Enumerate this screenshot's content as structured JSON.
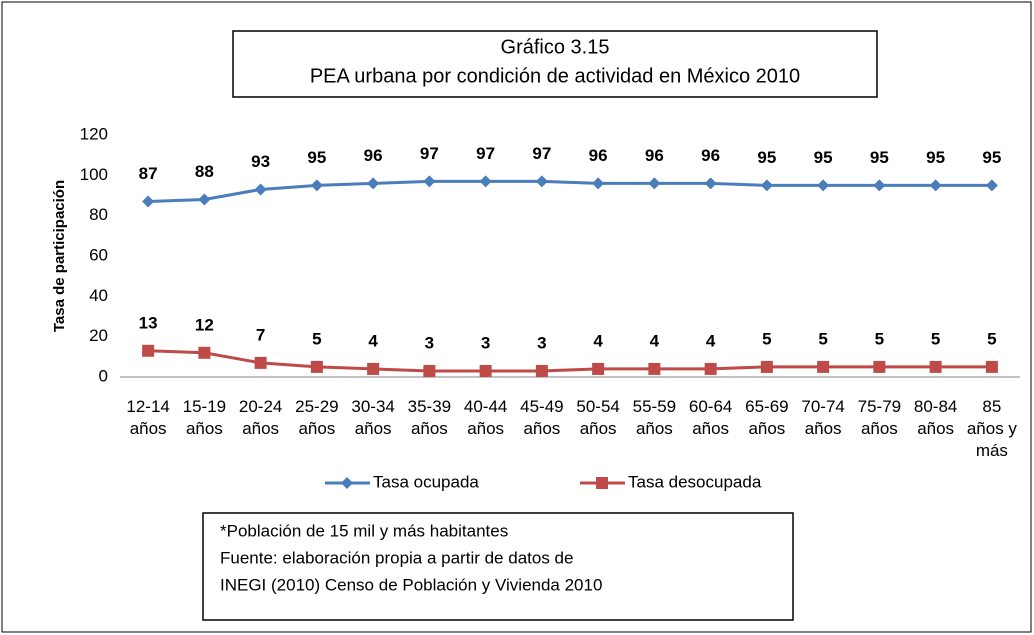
{
  "chart_data": {
    "type": "line",
    "title": "Gráfico 3.15",
    "subtitle": "PEA urbana por condición de actividad en México 2010",
    "y_label": "Tasa de participación",
    "categories": [
      "12-14 años",
      "15-19 años",
      "20-24 años",
      "25-29 años",
      "30-34 años",
      "35-39 años",
      "40-44 años",
      "45-49 años",
      "50-54 años",
      "55-59 años",
      "60-64 años",
      "65-69 años",
      "70-74 años",
      "75-79 años",
      "80-84 años",
      "85 años y más"
    ],
    "series": [
      {
        "name": "Tasa ocupada",
        "color": "#4a7ebb",
        "marker": "diamond",
        "values": [
          87,
          88,
          93,
          95,
          96,
          97,
          97,
          97,
          96,
          96,
          96,
          95,
          95,
          95,
          95,
          95
        ]
      },
      {
        "name": "Tasa desocupada",
        "color": "#be4b48",
        "marker": "square",
        "values": [
          13,
          12,
          7,
          5,
          4,
          3,
          3,
          3,
          4,
          4,
          4,
          5,
          5,
          5,
          5,
          5
        ]
      }
    ],
    "ylim": [
      0,
      120
    ],
    "yticks": [
      0,
      20,
      40,
      60,
      80,
      100,
      120
    ],
    "grid": false,
    "legend": "bottom",
    "notes": [
      "*Población de 15 mil y más habitantes",
      "Fuente: elaboración propia a partir de datos de",
      "INEGI (2010) Censo de Población y Vivienda 2010"
    ]
  }
}
